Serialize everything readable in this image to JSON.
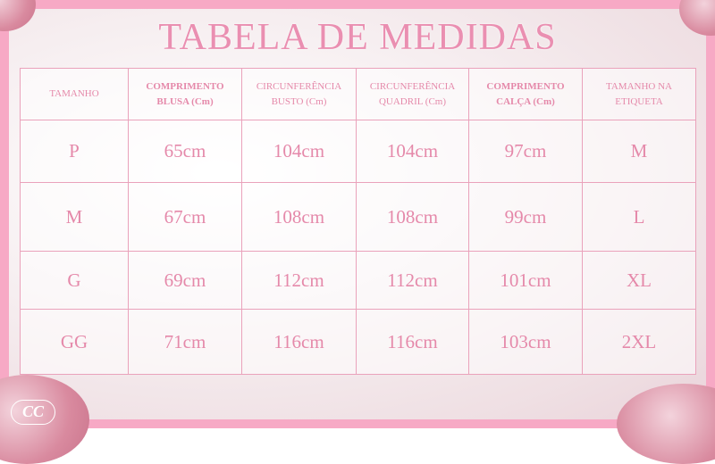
{
  "title": "TABELA DE MEDIDAS",
  "colors": {
    "frame": "#f7a9c5",
    "text": "#e589aa",
    "border": "#eaa2bb"
  },
  "table": {
    "headers": [
      {
        "label": "TAMANHO",
        "bold": false
      },
      {
        "label": "COMPRIMENTO BLUSA (Cm)",
        "bold": true
      },
      {
        "label": "CIRCUNFERÊNCIA BUSTO (Cm)",
        "bold": false
      },
      {
        "label": "CIRCUNFERÊNCIA QUADRIL (Cm)",
        "bold": false
      },
      {
        "label": "COMPRIMENTO CALÇA (Cm)",
        "bold": true
      },
      {
        "label": "TAMANHO NA ETIQUETA",
        "bold": false
      }
    ],
    "rows": [
      [
        "P",
        "65cm",
        "104cm",
        "104cm",
        "97cm",
        "M"
      ],
      [
        "M",
        "67cm",
        "108cm",
        "108cm",
        "99cm",
        "L"
      ],
      [
        "G",
        "69cm",
        "112cm",
        "112cm",
        "101cm",
        "XL"
      ],
      [
        "GG",
        "71cm",
        "116cm",
        "116cm",
        "103cm",
        "2XL"
      ]
    ]
  },
  "logo": "CC"
}
